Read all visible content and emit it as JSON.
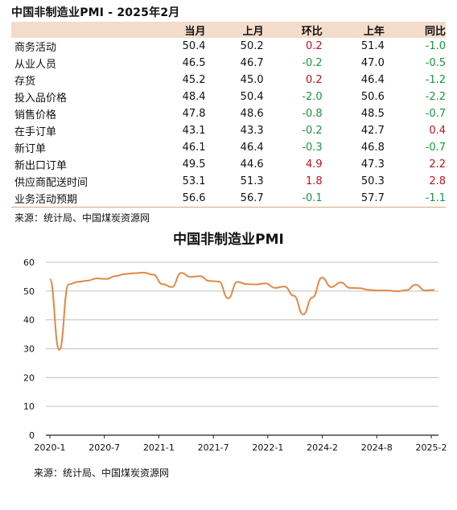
{
  "title": "中国非制造业PMI - 2025年2月",
  "table": {
    "headers": [
      "",
      "当月",
      "上月",
      "环比",
      "上年",
      "同比"
    ],
    "rows": [
      {
        "name": "商务活动",
        "cur": "50.4",
        "prev": "50.2",
        "mom": "0.2",
        "lastyear": "51.4",
        "yoy": "-1.0"
      },
      {
        "name": "从业人员",
        "cur": "46.5",
        "prev": "46.7",
        "mom": "-0.2",
        "lastyear": "47.0",
        "yoy": "-0.5"
      },
      {
        "name": "存货",
        "cur": "45.2",
        "prev": "45.0",
        "mom": "0.2",
        "lastyear": "46.4",
        "yoy": "-1.2"
      },
      {
        "name": "投入品价格",
        "cur": "48.4",
        "prev": "50.4",
        "mom": "-2.0",
        "lastyear": "50.6",
        "yoy": "-2.2"
      },
      {
        "name": "销售价格",
        "cur": "47.8",
        "prev": "48.6",
        "mom": "-0.8",
        "lastyear": "48.5",
        "yoy": "-0.7"
      },
      {
        "name": "在手订单",
        "cur": "43.1",
        "prev": "43.3",
        "mom": "-0.2",
        "lastyear": "42.7",
        "yoy": "0.4"
      },
      {
        "name": "新订单",
        "cur": "46.1",
        "prev": "46.4",
        "mom": "-0.3",
        "lastyear": "46.8",
        "yoy": "-0.7"
      },
      {
        "name": "新出口订单",
        "cur": "49.5",
        "prev": "44.6",
        "mom": "4.9",
        "lastyear": "47.3",
        "yoy": "2.2"
      },
      {
        "name": "供应商配送时间",
        "cur": "53.1",
        "prev": "51.3",
        "mom": "1.8",
        "lastyear": "50.3",
        "yoy": "2.8"
      },
      {
        "name": "业务活动预期",
        "cur": "56.6",
        "prev": "56.7",
        "mom": "-0.1",
        "lastyear": "57.7",
        "yoy": "-1.1"
      }
    ]
  },
  "source_top": "来源：统计局、中国煤炭资源网",
  "source_bottom": "来源：统计局、中国煤炭资源网",
  "colors": {
    "line": "#e08a45",
    "positive": "#c0121c",
    "negative": "#199740",
    "header_bg": "#f3dccb"
  },
  "chart_data": {
    "type": "line",
    "title": "中国非制造业PMI",
    "xlabel": "",
    "ylabel": "",
    "ylim": [
      0,
      60
    ],
    "yticks": [
      0,
      10,
      20,
      30,
      40,
      50,
      60
    ],
    "xtick_labels": [
      "2020-1",
      "2020-7",
      "2021-1",
      "2021-7",
      "2022-1",
      "2024-2",
      "2024-8",
      "2025-2"
    ],
    "grid": true,
    "values": [
      54.1,
      29.6,
      52.3,
      53.2,
      53.6,
      54.4,
      54.2,
      55.2,
      55.9,
      56.2,
      56.4,
      55.7,
      52.4,
      51.4,
      56.3,
      54.9,
      55.2,
      53.5,
      53.3,
      47.5,
      53.2,
      52.4,
      52.3,
      52.7,
      51.1,
      51.6,
      48.4,
      41.9,
      47.8,
      54.7,
      51.4,
      53.0,
      51.1,
      51.0,
      50.4,
      50.2,
      50.2,
      49.9,
      50.3,
      52.2,
      50.2,
      50.4
    ],
    "series": [
      {
        "values": [
          54.1,
          29.6,
          52.3,
          53.2,
          53.6,
          54.4,
          54.2,
          55.2,
          55.9,
          56.2,
          56.4,
          55.7,
          52.4,
          51.4,
          56.3,
          54.9,
          55.2,
          53.5,
          53.3,
          47.5,
          53.2,
          52.4,
          52.3,
          52.7,
          51.1,
          51.6,
          48.4,
          41.9,
          47.8,
          54.7,
          51.4,
          53.0,
          51.1,
          51.0,
          50.4,
          50.2,
          50.2,
          49.9,
          50.3,
          52.2,
          50.2,
          50.4
        ]
      }
    ]
  }
}
